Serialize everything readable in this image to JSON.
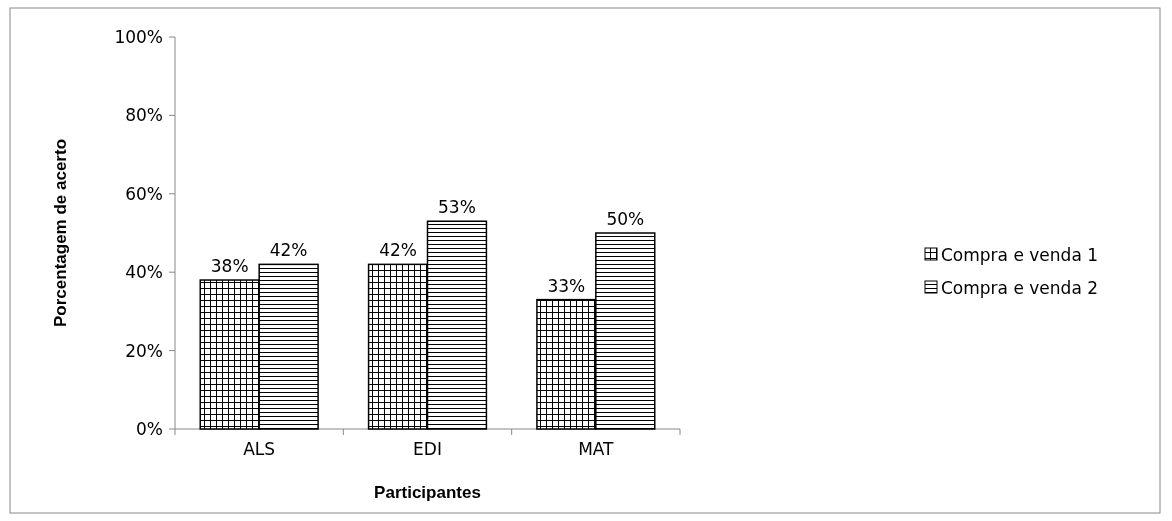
{
  "chart_data": {
    "type": "bar",
    "xlabel": "Participantes",
    "ylabel": "Porcentagem de acerto",
    "categories": [
      "ALS",
      "EDI",
      "MAT"
    ],
    "series": [
      {
        "name": "Compra e venda 1",
        "color": "#000000",
        "values": [
          38,
          42,
          33
        ],
        "value_labels": [
          "38%",
          "42%",
          "33%"
        ]
      },
      {
        "name": "Compra e venda 2",
        "color": "#000000",
        "values": [
          42,
          53,
          50
        ],
        "value_labels": [
          "42%",
          "53%",
          "50%"
        ]
      }
    ],
    "ylim": [
      0,
      100
    ],
    "yticks": [
      {
        "value": 0,
        "label": "0%"
      },
      {
        "value": 20,
        "label": "20%"
      },
      {
        "value": 40,
        "label": "40%"
      },
      {
        "value": 60,
        "label": "60%"
      },
      {
        "value": 80,
        "label": "80%"
      },
      {
        "value": 100,
        "label": "100%"
      }
    ],
    "legend": "right"
  }
}
